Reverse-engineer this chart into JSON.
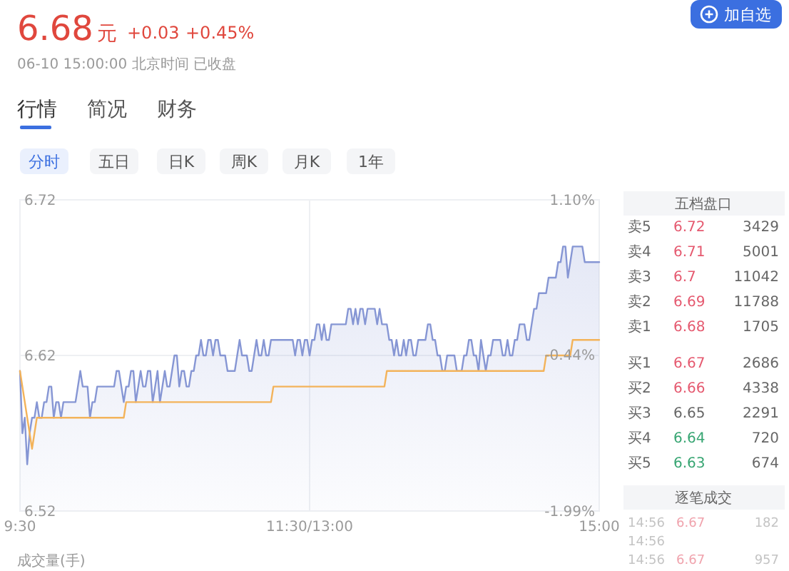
{
  "chart_data": {
    "type": "area",
    "categories": [
      "9:30",
      null,
      null,
      null,
      null,
      null,
      null,
      null,
      null,
      null,
      null,
      null,
      null,
      null,
      null,
      null,
      null,
      null,
      null,
      null,
      null,
      null,
      null,
      null,
      null,
      null,
      null,
      null,
      null,
      null,
      null,
      null,
      null,
      null,
      null,
      null,
      null,
      null,
      null,
      null,
      null,
      null,
      null,
      null,
      null,
      null,
      null,
      null,
      null,
      null,
      null,
      null,
      null,
      null,
      null,
      null,
      null,
      null,
      null,
      null,
      null,
      null,
      null,
      null,
      null,
      null,
      null,
      null,
      null,
      null,
      null,
      null,
      null,
      null,
      null,
      null,
      null,
      null,
      null,
      null,
      null,
      null,
      null,
      null,
      null,
      null,
      null,
      null,
      null,
      null,
      null,
      null,
      null,
      null,
      null,
      null,
      null,
      null,
      null,
      null,
      null,
      null,
      null,
      null,
      null,
      null,
      null,
      null,
      null,
      null,
      null,
      null,
      null,
      null,
      null,
      null,
      null,
      null,
      null,
      null,
      "11:30/13:00",
      null,
      null,
      null,
      null,
      null,
      null,
      null,
      null,
      null,
      null,
      null,
      null,
      null,
      null,
      null,
      null,
      null,
      null,
      null,
      null,
      null,
      null,
      null,
      null,
      null,
      null,
      null,
      null,
      null,
      null,
      null,
      null,
      null,
      null,
      null,
      null,
      null,
      null,
      null,
      null,
      null,
      null,
      null,
      null,
      null,
      null,
      null,
      null,
      null,
      null,
      null,
      null,
      null,
      null,
      null,
      null,
      null,
      null,
      null,
      null,
      null,
      null,
      null,
      null,
      null,
      null,
      null,
      null,
      null,
      null,
      null,
      null,
      null,
      null,
      null,
      null,
      null,
      null,
      null,
      null,
      null,
      null,
      null,
      null,
      null,
      null,
      null,
      null,
      null,
      null,
      null,
      null,
      null,
      null,
      null,
      null,
      null,
      null,
      null,
      null,
      null,
      null,
      null,
      null,
      null,
      null,
      null,
      null,
      null,
      null,
      null,
      null,
      null,
      null,
      null,
      null,
      null,
      null,
      null,
      "15:00"
    ],
    "ylim": [
      6.52,
      6.72
    ],
    "yticks": [
      6.52,
      6.62,
      6.72
    ],
    "y2lim": [
      -1.99,
      1.1
    ],
    "y2ticks": [
      {
        "value": -1.99,
        "label": "-1.99%"
      },
      {
        "value": -0.44,
        "label": "-0.44%"
      },
      {
        "value": 1.1,
        "label": "1.10%"
      }
    ],
    "grid": true,
    "series": [
      {
        "color": "#8696d4",
        "values": [
          6.61,
          6.57,
          6.58,
          6.55,
          6.57,
          6.58,
          6.58,
          6.59,
          6.58,
          6.58,
          6.59,
          6.59,
          6.6,
          6.6,
          6.58,
          6.59,
          6.59,
          6.58,
          6.59,
          6.59,
          6.59,
          6.59,
          6.59,
          6.59,
          6.6,
          6.61,
          6.6,
          6.6,
          6.6,
          6.58,
          6.59,
          6.59,
          6.6,
          6.6,
          6.6,
          6.6,
          6.6,
          6.6,
          6.6,
          6.6,
          6.61,
          6.61,
          6.6,
          6.59,
          6.6,
          6.6,
          6.61,
          6.61,
          6.59,
          6.6,
          6.61,
          6.6,
          6.6,
          6.61,
          6.61,
          6.59,
          6.6,
          6.61,
          6.59,
          6.6,
          6.61,
          6.6,
          6.6,
          6.61,
          6.62,
          6.62,
          6.6,
          6.61,
          6.61,
          6.6,
          6.6,
          6.61,
          6.61,
          6.62,
          6.62,
          6.63,
          6.62,
          6.62,
          6.63,
          6.63,
          6.62,
          6.63,
          6.63,
          6.62,
          6.62,
          6.62,
          6.61,
          6.61,
          6.61,
          6.61,
          6.62,
          6.63,
          6.62,
          6.62,
          6.62,
          6.61,
          6.61,
          6.62,
          6.63,
          6.62,
          6.62,
          6.63,
          6.62,
          6.62,
          6.63,
          6.63,
          6.63,
          6.63,
          6.63,
          6.63,
          6.63,
          6.63,
          6.63,
          6.63,
          6.62,
          6.63,
          6.63,
          6.62,
          6.63,
          6.63,
          6.62,
          6.63,
          6.63,
          6.64,
          6.64,
          6.63,
          6.64,
          6.63,
          6.63,
          6.64,
          6.64,
          6.64,
          6.64,
          6.64,
          6.64,
          6.64,
          6.65,
          6.65,
          6.64,
          6.65,
          6.64,
          6.65,
          6.65,
          6.64,
          6.65,
          6.65,
          6.65,
          6.65,
          6.64,
          6.65,
          6.64,
          6.64,
          6.64,
          6.63,
          6.63,
          6.62,
          6.63,
          6.62,
          6.62,
          6.63,
          6.62,
          6.63,
          6.63,
          6.62,
          6.62,
          6.63,
          6.63,
          6.63,
          6.63,
          6.64,
          6.64,
          6.63,
          6.63,
          6.62,
          6.62,
          6.61,
          6.61,
          6.62,
          6.62,
          6.62,
          6.62,
          6.61,
          6.61,
          6.61,
          6.62,
          6.62,
          6.63,
          6.63,
          6.62,
          6.62,
          6.61,
          6.63,
          6.62,
          6.61,
          6.62,
          6.62,
          6.63,
          6.63,
          6.63,
          6.63,
          6.62,
          6.62,
          6.63,
          6.62,
          6.62,
          6.63,
          6.63,
          6.64,
          6.64,
          6.64,
          6.63,
          6.63,
          6.64,
          6.65,
          6.65,
          6.66,
          6.66,
          6.66,
          6.66,
          6.67,
          6.67,
          6.67,
          6.67,
          6.68,
          6.68,
          6.69,
          6.69,
          6.67,
          6.68,
          6.69,
          6.69,
          6.69,
          6.69,
          6.69,
          6.68,
          6.68,
          6.68,
          6.68,
          6.68,
          6.68,
          6.68
        ]
      },
      {
        "type": "line",
        "color": "#f3b35a",
        "values": [
          6.61,
          6.6,
          6.59,
          6.58,
          6.57,
          6.56,
          6.57,
          6.58,
          6.58,
          6.58,
          6.58,
          6.58,
          6.58,
          6.58,
          6.58,
          6.58,
          6.58,
          6.58,
          6.58,
          6.58,
          6.58,
          6.58,
          6.58,
          6.58,
          6.58,
          6.58,
          6.58,
          6.58,
          6.58,
          6.58,
          6.58,
          6.58,
          6.58,
          6.58,
          6.58,
          6.58,
          6.58,
          6.58,
          6.58,
          6.58,
          6.58,
          6.58,
          6.58,
          6.58,
          6.59,
          6.59,
          6.59,
          6.59,
          6.59,
          6.59,
          6.59,
          6.59,
          6.59,
          6.59,
          6.59,
          6.59,
          6.59,
          6.59,
          6.59,
          6.59,
          6.59,
          6.59,
          6.59,
          6.59,
          6.59,
          6.59,
          6.59,
          6.59,
          6.59,
          6.59,
          6.59,
          6.59,
          6.59,
          6.59,
          6.59,
          6.59,
          6.59,
          6.59,
          6.59,
          6.59,
          6.59,
          6.59,
          6.59,
          6.59,
          6.59,
          6.59,
          6.59,
          6.59,
          6.59,
          6.59,
          6.59,
          6.59,
          6.59,
          6.59,
          6.59,
          6.59,
          6.59,
          6.59,
          6.59,
          6.59,
          6.59,
          6.59,
          6.59,
          6.59,
          6.59,
          6.6,
          6.6,
          6.6,
          6.6,
          6.6,
          6.6,
          6.6,
          6.6,
          6.6,
          6.6,
          6.6,
          6.6,
          6.6,
          6.6,
          6.6,
          6.6,
          6.6,
          6.6,
          6.6,
          6.6,
          6.6,
          6.6,
          6.6,
          6.6,
          6.6,
          6.6,
          6.6,
          6.6,
          6.6,
          6.6,
          6.6,
          6.6,
          6.6,
          6.6,
          6.6,
          6.6,
          6.6,
          6.6,
          6.6,
          6.6,
          6.6,
          6.6,
          6.6,
          6.6,
          6.6,
          6.6,
          6.6,
          6.61,
          6.61,
          6.61,
          6.61,
          6.61,
          6.61,
          6.61,
          6.61,
          6.61,
          6.61,
          6.61,
          6.61,
          6.61,
          6.61,
          6.61,
          6.61,
          6.61,
          6.61,
          6.61,
          6.61,
          6.61,
          6.61,
          6.61,
          6.61,
          6.61,
          6.61,
          6.61,
          6.61,
          6.61,
          6.61,
          6.61,
          6.61,
          6.61,
          6.61,
          6.61,
          6.61,
          6.61,
          6.61,
          6.61,
          6.61,
          6.61,
          6.61,
          6.61,
          6.61,
          6.61,
          6.61,
          6.61,
          6.61,
          6.61,
          6.61,
          6.61,
          6.61,
          6.61,
          6.61,
          6.61,
          6.61,
          6.61,
          6.61,
          6.61,
          6.61,
          6.61,
          6.61,
          6.61,
          6.61,
          6.61,
          6.61,
          6.62,
          6.62,
          6.62,
          6.62,
          6.62,
          6.62,
          6.62,
          6.62,
          6.62,
          6.62,
          6.62,
          6.63,
          6.63,
          6.63,
          6.63,
          6.63,
          6.63,
          6.63,
          6.63,
          6.63,
          6.63,
          6.63,
          6.63
        ]
      }
    ],
    "annotations": [
      "6.68",
      "元",
      "+0.03",
      "+0.45%",
      "06-10 15:00:00 北京时间 已收盘",
      "行情",
      "简况",
      "财务",
      "分时",
      "五日",
      "日K",
      "周K",
      "月K",
      "1年",
      "加自选",
      "五档盘口",
      "卖5",
      "6.72",
      "3429",
      "卖4",
      "6.71",
      "5001",
      "卖3",
      "6.7",
      "11042",
      "卖2",
      "6.69",
      "11788",
      "卖1",
      "6.68",
      "1705",
      "买1",
      "6.67",
      "2686",
      "买2",
      "6.66",
      "4338",
      "买3",
      "6.65",
      "2291",
      "买4",
      "6.64",
      "720",
      "买5",
      "6.63",
      "674",
      "逐笔成交",
      "14:56",
      "6.67",
      "182",
      "14:56",
      "14:56",
      "6.67",
      "957",
      "成交量(手)"
    ]
  }
}
